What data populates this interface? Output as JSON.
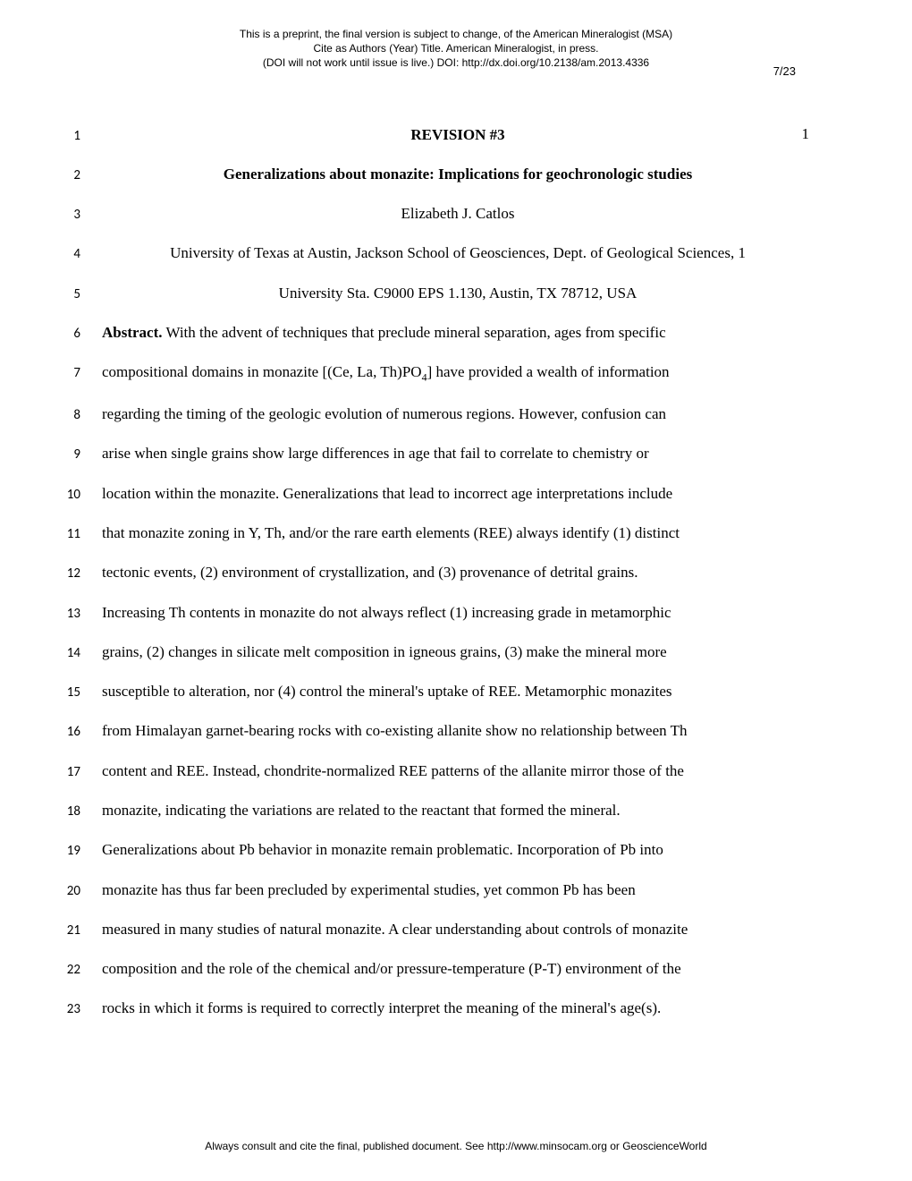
{
  "header": {
    "line1": "This is a preprint, the final version is subject to change, of the American Mineralogist (MSA)",
    "line2": "Cite as Authors (Year) Title. American Mineralogist, in press.",
    "line3": "(DOI will not work until issue is live.) DOI: http://dx.doi.org/10.2138/am.2013.4336"
  },
  "page_marker": "7/23",
  "page_number": "1",
  "lines": [
    {
      "n": "1",
      "text": "REVISION #3",
      "center": true,
      "bold": true
    },
    {
      "n": "2",
      "text": "Generalizations about monazite: Implications for geochronologic studies",
      "center": true,
      "bold": true
    },
    {
      "n": "3",
      "text": "Elizabeth J. Catlos",
      "center": true
    },
    {
      "n": "4",
      "text": "University of Texas at Austin, Jackson School of Geosciences, Dept. of Geological Sciences, 1",
      "center": true
    },
    {
      "n": "5",
      "text": "University Sta. C9000 EPS 1.130, Austin, TX 78712, USA",
      "center": true
    },
    {
      "n": "6",
      "prefix_bold": "Abstract.",
      "text": " With the advent of techniques that preclude mineral separation, ages from specific"
    },
    {
      "n": "7",
      "text_before_sub": "compositional domains in monazite [(Ce, La, Th)PO",
      "sub": "4",
      "text_after_sub": "] have provided a wealth of information"
    },
    {
      "n": "8",
      "text": "regarding the timing of the geologic evolution of numerous regions. However, confusion can"
    },
    {
      "n": "9",
      "text": "arise when single grains show large differences in age that fail to correlate to chemistry or"
    },
    {
      "n": "10",
      "text": "location within the monazite. Generalizations that lead to incorrect age interpretations include"
    },
    {
      "n": "11",
      "text": "that monazite zoning in Y, Th, and/or the rare earth elements (REE) always identify (1) distinct"
    },
    {
      "n": "12",
      "text": "tectonic events, (2) environment of crystallization, and (3) provenance of detrital grains."
    },
    {
      "n": "13",
      "text": "Increasing Th contents in monazite do not always reflect (1) increasing grade in metamorphic"
    },
    {
      "n": "14",
      "text": "grains, (2) changes in silicate melt composition in igneous grains, (3) make the mineral more"
    },
    {
      "n": "15",
      "text": "susceptible to alteration, nor (4) control the mineral's uptake of REE. Metamorphic monazites"
    },
    {
      "n": "16",
      "text": "from Himalayan garnet-bearing rocks with co-existing allanite show no relationship between Th"
    },
    {
      "n": "17",
      "text": "content and REE. Instead, chondrite-normalized REE patterns of the allanite mirror those of the"
    },
    {
      "n": "18",
      "text": "monazite, indicating the variations are related to the reactant that formed the mineral."
    },
    {
      "n": "19",
      "text": "Generalizations about Pb behavior in monazite remain problematic. Incorporation of Pb into"
    },
    {
      "n": "20",
      "text": "monazite has thus far been precluded by experimental studies, yet common Pb has been"
    },
    {
      "n": "21",
      "text": "measured in many studies of natural monazite. A clear understanding about controls of monazite"
    },
    {
      "n": "22",
      "text": "composition and the role of the chemical and/or pressure-temperature (P-T) environment of the"
    },
    {
      "n": "23",
      "text": "rocks in which it forms is required to correctly interpret the meaning of the mineral's age(s)."
    }
  ],
  "footer": "Always consult and cite the final, published document. See http://www.minsocam.org or GeoscienceWorld"
}
